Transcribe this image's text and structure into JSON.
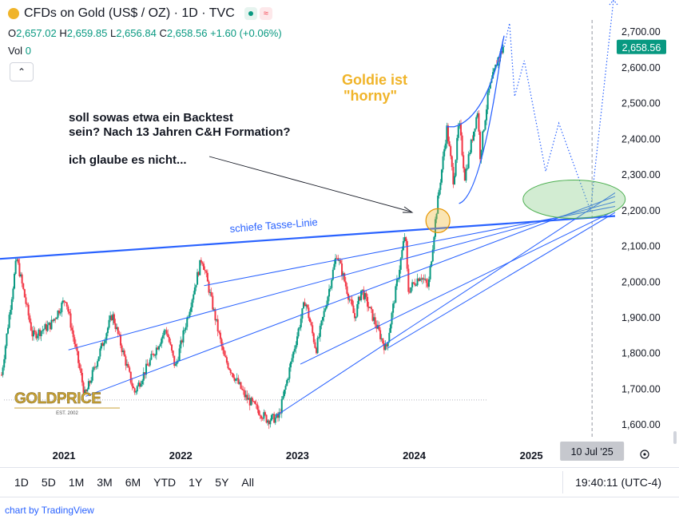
{
  "header": {
    "title": "CFDs on Gold (US$ / OZ) · 1D · TVC",
    "ohlc": [
      {
        "k": "O",
        "v": "2,657.02"
      },
      {
        "k": "H",
        "v": "2,659.85"
      },
      {
        "k": "L",
        "v": "2,656.84"
      },
      {
        "k": "C",
        "v": "2,658.56"
      }
    ],
    "change": "+1.60 (+0.06%)",
    "vol_label": "Vol",
    "vol_value": "0"
  },
  "toolbar": {
    "timeframes": [
      "1D",
      "5D",
      "1M",
      "3M",
      "6M",
      "YTD",
      "1Y",
      "5Y",
      "All"
    ],
    "clock": "19:40:11 (UTC-4)",
    "credit": "chart by TradingView"
  },
  "colors": {
    "up": "#089981",
    "down": "#f23645",
    "trend": "#2962ff",
    "gold": "#f0b429",
    "ellipse": "#7fc97f"
  },
  "chart_data": {
    "type": "candlestick",
    "y_tick_labels": [
      "1,600.00",
      "1,700.00",
      "1,800.00",
      "1,900.00",
      "2,000.00",
      "2,100.00",
      "2,200.00",
      "2,300.00",
      "2,400.00",
      "2,500.00",
      "2,600.00",
      "2,700.00"
    ],
    "y_ticks": [
      1600,
      1700,
      1800,
      1900,
      2000,
      2100,
      2200,
      2300,
      2400,
      2500,
      2600,
      2700
    ],
    "ylim": [
      1560,
      2790
    ],
    "x_tick_labels": [
      "2021",
      "2022",
      "2023",
      "2024",
      "2025"
    ],
    "x_ticks": [
      "2021-01-01",
      "2022-01-01",
      "2023-01-01",
      "2024-01-01",
      "2025-01-01"
    ],
    "xlim": [
      "2020-06-15",
      "2025-09-20"
    ],
    "last_price": 2658.56,
    "last_price_label": "2,658.56",
    "crosshair_date": "2025-07-10",
    "crosshair_label": "10 Jul '25",
    "path": [
      [
        "2020-06-20",
        1740
      ],
      [
        "2020-08-06",
        2067
      ],
      [
        "2020-09-25",
        1850
      ],
      [
        "2020-11-20",
        1880
      ],
      [
        "2021-01-06",
        1955
      ],
      [
        "2021-03-08",
        1680
      ],
      [
        "2021-06-01",
        1910
      ],
      [
        "2021-08-09",
        1690
      ],
      [
        "2021-11-16",
        1870
      ],
      [
        "2021-12-15",
        1760
      ],
      [
        "2022-03-08",
        2070
      ],
      [
        "2022-05-16",
        1790
      ],
      [
        "2022-07-21",
        1680
      ],
      [
        "2022-09-28",
        1615
      ],
      [
        "2022-11-03",
        1620
      ],
      [
        "2023-01-25",
        1950
      ],
      [
        "2023-02-28",
        1810
      ],
      [
        "2023-05-04",
        2080
      ],
      [
        "2023-06-29",
        1900
      ],
      [
        "2023-07-20",
        1980
      ],
      [
        "2023-10-05",
        1810
      ],
      [
        "2023-12-04",
        2140
      ],
      [
        "2023-12-13",
        1975
      ],
      [
        "2024-01-20",
        2020
      ],
      [
        "2024-02-14",
        1985
      ],
      [
        "2024-03-08",
        2180
      ],
      [
        "2024-04-12",
        2430
      ],
      [
        "2024-05-03",
        2280
      ],
      [
        "2024-05-20",
        2450
      ],
      [
        "2024-06-07",
        2295
      ],
      [
        "2024-07-17",
        2480
      ],
      [
        "2024-07-25",
        2355
      ],
      [
        "2024-08-20",
        2530
      ],
      [
        "2024-09-20",
        2630
      ],
      [
        "2024-10-08",
        2658.56
      ]
    ],
    "annotations": {
      "text_main": [
        "soll sowas etwa ein Backtest",
        "sein? Nach 13 Jahren C&H Formation?"
      ],
      "text_sub": "ich glaube es nicht...",
      "gold_text": [
        "Goldie ist",
        "\"horny\""
      ],
      "line_label": "schiefe Tasse-Linie",
      "logo": "GOLDPRICE",
      "logo_sub": "EST. 2002"
    },
    "trendlines": [
      {
        "from": [
          "2020-06-15",
          2065
        ],
        "to": [
          "2025-09-20",
          2185
        ],
        "width": 2.2
      },
      {
        "from": [
          "2021-03-10",
          1680
        ],
        "to": [
          "2025-09-20",
          2240
        ],
        "width": 1
      },
      {
        "from": [
          "2021-01-15",
          1810
        ],
        "to": [
          "2025-09-20",
          2225
        ],
        "width": 1
      },
      {
        "from": [
          "2022-03-15",
          1990
        ],
        "to": [
          "2025-09-20",
          2212
        ],
        "width": 1
      },
      {
        "from": [
          "2022-10-25",
          1625
        ],
        "to": [
          "2025-09-20",
          2250
        ],
        "width": 1
      },
      {
        "from": [
          "2023-01-10",
          1770
        ],
        "to": [
          "2025-09-20",
          2200
        ],
        "width": 1
      },
      {
        "from": [
          "2023-10-10",
          1815
        ],
        "to": [
          "2025-09-20",
          2195
        ],
        "width": 1
      }
    ],
    "projection": [
      [
        "2024-10-25",
        2725
      ],
      [
        "2024-11-10",
        2520
      ],
      [
        "2024-12-10",
        2620
      ],
      [
        "2025-02-15",
        2310
      ],
      [
        "2025-03-28",
        2445
      ],
      [
        "2025-07-05",
        2200
      ],
      [
        "2025-09-15",
        2790
      ]
    ]
  }
}
